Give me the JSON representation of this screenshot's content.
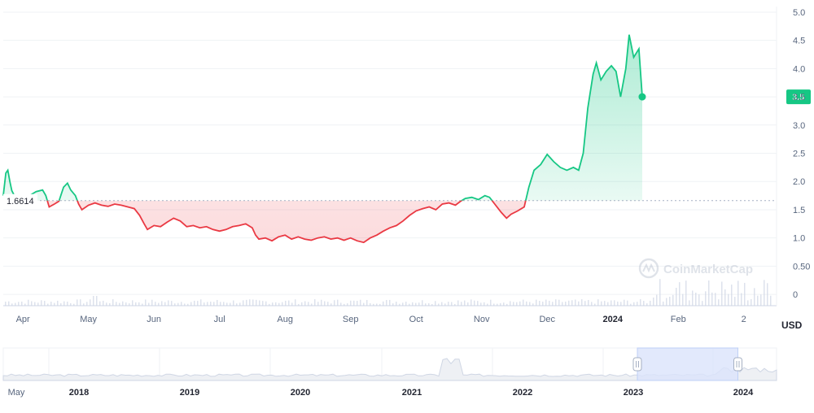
{
  "chart_data": {
    "type": "line",
    "currency_label": "USD",
    "watermark": "CoinMarketCap",
    "reference_value": 1.6614,
    "reference_label": "1.6614",
    "current_value": 3.5,
    "current_label": "3.5",
    "ylim": [
      -0.2,
      5.1
    ],
    "y_ticks": [
      {
        "value": 5.0,
        "label": "5.0"
      },
      {
        "value": 4.5,
        "label": "4.5"
      },
      {
        "value": 4.0,
        "label": "4.0"
      },
      {
        "value": 3.5,
        "label": "3.5"
      },
      {
        "value": 3.0,
        "label": "3.0"
      },
      {
        "value": 2.5,
        "label": "2.5"
      },
      {
        "value": 2.0,
        "label": "2.0"
      },
      {
        "value": 1.5,
        "label": "1.5"
      },
      {
        "value": 1.0,
        "label": "1.0"
      },
      {
        "value": 0.5,
        "label": "0.50"
      },
      {
        "value": 0,
        "label": "0"
      }
    ],
    "x_ticks": [
      {
        "t": 2.3,
        "label": "Apr",
        "bold": false
      },
      {
        "t": 3.3,
        "label": "May",
        "bold": false
      },
      {
        "t": 4.3,
        "label": "Jun",
        "bold": false
      },
      {
        "t": 5.3,
        "label": "Jul",
        "bold": false
      },
      {
        "t": 6.3,
        "label": "Aug",
        "bold": false
      },
      {
        "t": 7.3,
        "label": "Sep",
        "bold": false
      },
      {
        "t": 8.3,
        "label": "Oct",
        "bold": false
      },
      {
        "t": 9.3,
        "label": "Nov",
        "bold": false
      },
      {
        "t": 10.3,
        "label": "Dec",
        "bold": false
      },
      {
        "t": 11.3,
        "label": "2024",
        "bold": true
      },
      {
        "t": 12.3,
        "label": "Feb",
        "bold": false
      },
      {
        "t": 13.3,
        "label": "2",
        "bold": false
      }
    ],
    "x_range": [
      2.0,
      13.8
    ],
    "series": [
      {
        "points": [
          [
            2.0,
            1.75
          ],
          [
            2.04,
            2.15
          ],
          [
            2.07,
            2.2
          ],
          [
            2.1,
            2.0
          ],
          [
            2.13,
            1.84
          ],
          [
            2.2,
            1.68
          ],
          [
            2.3,
            1.72
          ],
          [
            2.4,
            1.75
          ],
          [
            2.5,
            1.82
          ],
          [
            2.6,
            1.85
          ],
          [
            2.65,
            1.75
          ],
          [
            2.7,
            1.55
          ],
          [
            2.78,
            1.6
          ],
          [
            2.85,
            1.65
          ],
          [
            2.92,
            1.9
          ],
          [
            2.98,
            1.97
          ],
          [
            3.03,
            1.85
          ],
          [
            3.1,
            1.75
          ],
          [
            3.15,
            1.6
          ],
          [
            3.2,
            1.5
          ],
          [
            3.3,
            1.58
          ],
          [
            3.4,
            1.62
          ],
          [
            3.5,
            1.58
          ],
          [
            3.6,
            1.56
          ],
          [
            3.7,
            1.6
          ],
          [
            3.8,
            1.58
          ],
          [
            3.9,
            1.55
          ],
          [
            4.0,
            1.52
          ],
          [
            4.08,
            1.4
          ],
          [
            4.15,
            1.25
          ],
          [
            4.2,
            1.15
          ],
          [
            4.3,
            1.22
          ],
          [
            4.4,
            1.2
          ],
          [
            4.5,
            1.28
          ],
          [
            4.6,
            1.35
          ],
          [
            4.7,
            1.3
          ],
          [
            4.8,
            1.2
          ],
          [
            4.9,
            1.22
          ],
          [
            5.0,
            1.18
          ],
          [
            5.1,
            1.2
          ],
          [
            5.2,
            1.15
          ],
          [
            5.3,
            1.12
          ],
          [
            5.4,
            1.15
          ],
          [
            5.5,
            1.2
          ],
          [
            5.6,
            1.22
          ],
          [
            5.7,
            1.25
          ],
          [
            5.8,
            1.18
          ],
          [
            5.85,
            1.05
          ],
          [
            5.9,
            0.98
          ],
          [
            6.0,
            1.0
          ],
          [
            6.1,
            0.95
          ],
          [
            6.2,
            1.02
          ],
          [
            6.3,
            1.05
          ],
          [
            6.4,
            0.98
          ],
          [
            6.5,
            1.02
          ],
          [
            6.6,
            0.98
          ],
          [
            6.7,
            0.96
          ],
          [
            6.8,
            1.0
          ],
          [
            6.9,
            1.02
          ],
          [
            7.0,
            0.98
          ],
          [
            7.1,
            1.0
          ],
          [
            7.2,
            0.96
          ],
          [
            7.3,
            1.0
          ],
          [
            7.4,
            0.95
          ],
          [
            7.5,
            0.92
          ],
          [
            7.6,
            1.0
          ],
          [
            7.7,
            1.05
          ],
          [
            7.8,
            1.12
          ],
          [
            7.9,
            1.18
          ],
          [
            8.0,
            1.22
          ],
          [
            8.1,
            1.3
          ],
          [
            8.2,
            1.4
          ],
          [
            8.3,
            1.48
          ],
          [
            8.4,
            1.52
          ],
          [
            8.5,
            1.55
          ],
          [
            8.6,
            1.5
          ],
          [
            8.7,
            1.6
          ],
          [
            8.8,
            1.62
          ],
          [
            8.9,
            1.58
          ],
          [
            8.98,
            1.65
          ],
          [
            9.05,
            1.7
          ],
          [
            9.15,
            1.72
          ],
          [
            9.25,
            1.68
          ],
          [
            9.35,
            1.75
          ],
          [
            9.42,
            1.72
          ],
          [
            9.5,
            1.6
          ],
          [
            9.6,
            1.45
          ],
          [
            9.68,
            1.35
          ],
          [
            9.75,
            1.42
          ],
          [
            9.85,
            1.48
          ],
          [
            9.95,
            1.55
          ],
          [
            10.02,
            1.9
          ],
          [
            10.1,
            2.2
          ],
          [
            10.2,
            2.3
          ],
          [
            10.3,
            2.48
          ],
          [
            10.4,
            2.35
          ],
          [
            10.5,
            2.25
          ],
          [
            10.6,
            2.2
          ],
          [
            10.7,
            2.25
          ],
          [
            10.78,
            2.2
          ],
          [
            10.85,
            2.5
          ],
          [
            10.92,
            3.3
          ],
          [
            11.0,
            3.9
          ],
          [
            11.05,
            4.1
          ],
          [
            11.12,
            3.8
          ],
          [
            11.2,
            3.95
          ],
          [
            11.28,
            4.05
          ],
          [
            11.35,
            3.95
          ],
          [
            11.42,
            3.5
          ],
          [
            11.5,
            4.0
          ],
          [
            11.55,
            4.6
          ],
          [
            11.62,
            4.2
          ],
          [
            11.7,
            4.35
          ],
          [
            11.75,
            3.5
          ]
        ]
      }
    ],
    "navigator": {
      "x_ticks": [
        {
          "label": "May",
          "bold": false
        },
        {
          "label": "2018",
          "bold": true
        },
        {
          "label": "2019",
          "bold": true
        },
        {
          "label": "2020",
          "bold": true
        },
        {
          "label": "2021",
          "bold": true
        },
        {
          "label": "2022",
          "bold": true
        },
        {
          "label": "2023",
          "bold": true
        },
        {
          "label": "2024",
          "bold": true
        }
      ],
      "selection_start": 0.82,
      "selection_end": 0.95
    }
  }
}
